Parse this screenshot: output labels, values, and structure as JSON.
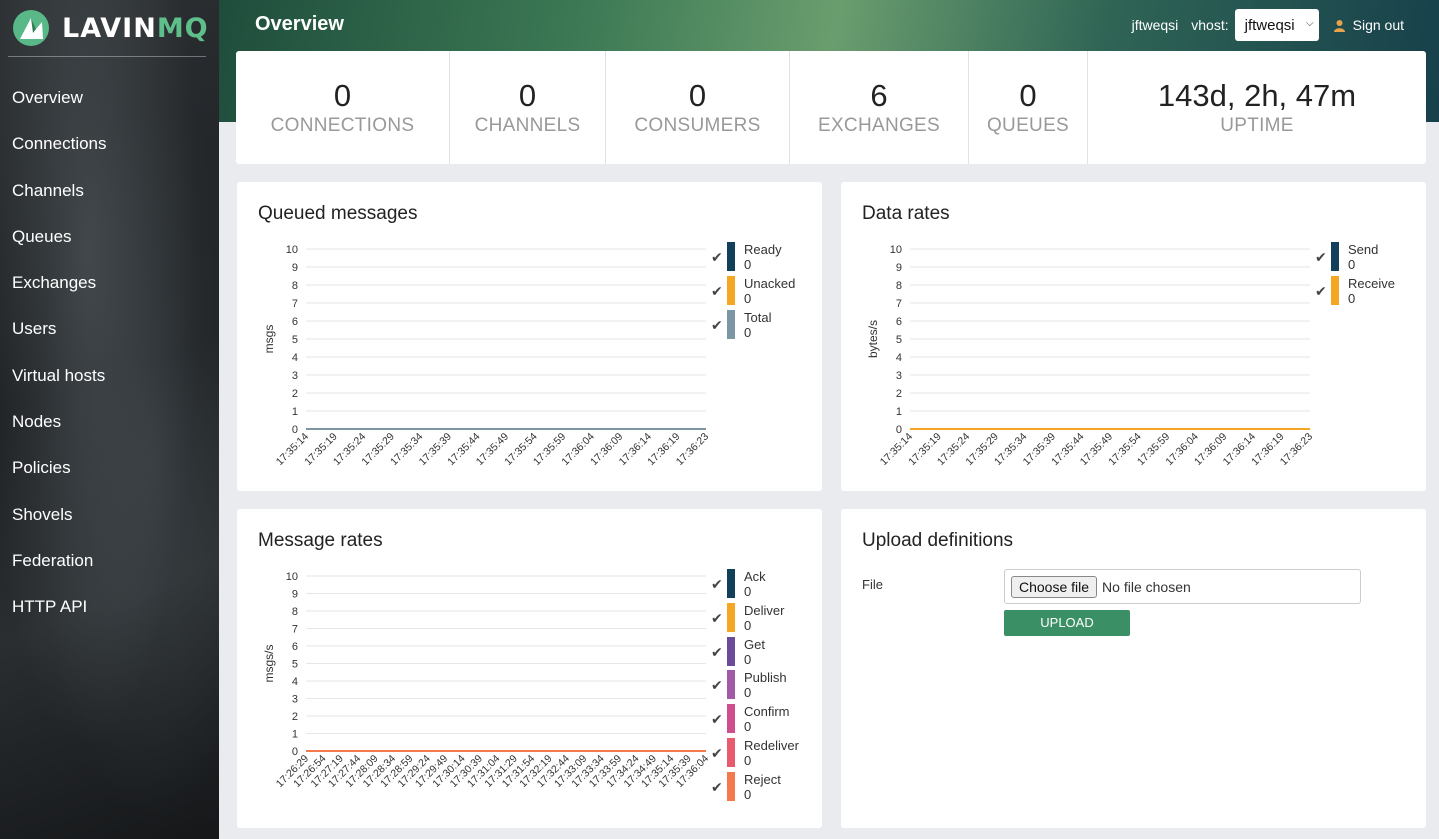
{
  "logo": {
    "word_main": "LAVIN",
    "word_accent": "MQ"
  },
  "nav": [
    "Overview",
    "Connections",
    "Channels",
    "Queues",
    "Exchanges",
    "Users",
    "Virtual hosts",
    "Nodes",
    "Policies",
    "Shovels",
    "Federation",
    "HTTP API"
  ],
  "header": {
    "title": "Overview",
    "user": "jftweqsi",
    "vhost_label": "vhost:",
    "vhost_value": "jftweqsi",
    "signout": "Sign out"
  },
  "stats": [
    {
      "value": "0",
      "label": "CONNECTIONS"
    },
    {
      "value": "0",
      "label": "CHANNELS"
    },
    {
      "value": "0",
      "label": "CONSUMERS"
    },
    {
      "value": "6",
      "label": "EXCHANGES"
    },
    {
      "value": "0",
      "label": "QUEUES"
    },
    {
      "value": "143d, 2h, 47m",
      "label": "UPTIME"
    }
  ],
  "upload": {
    "title": "Upload definitions",
    "file_label": "File",
    "choose_button": "Choose file",
    "file_status": "No file chosen",
    "upload_button": "UPLOAD"
  },
  "colors": {
    "ready": "#12405a",
    "unacked": "#f5a623",
    "total": "#7c97a3",
    "send": "#12405a",
    "receive": "#f5a623",
    "ack": "#12405a",
    "deliver": "#f5a623",
    "get": "#6b4c9a",
    "publish": "#a25aa6",
    "confirm": "#cf4f8c",
    "redeliver": "#e85b6f",
    "reject": "#f47a4d"
  },
  "chart_data": [
    {
      "type": "line",
      "title": "Queued messages",
      "ylabel": "msgs",
      "ylim": [
        0,
        10
      ],
      "yticks": [
        "0",
        "1",
        "2",
        "3",
        "4",
        "5",
        "6",
        "7",
        "8",
        "9",
        "10"
      ],
      "x": [
        "17:35:14",
        "17:35:19",
        "17:35:24",
        "17:35:29",
        "17:35:34",
        "17:35:39",
        "17:35:44",
        "17:35:49",
        "17:35:54",
        "17:35:59",
        "17:36:04",
        "17:36:09",
        "17:36:14",
        "17:36:19",
        "17:36:23"
      ],
      "series": [
        {
          "name": "Ready",
          "display": "0",
          "color_key": "ready",
          "values": [
            0,
            0,
            0,
            0,
            0,
            0,
            0,
            0,
            0,
            0,
            0,
            0,
            0,
            0,
            0
          ]
        },
        {
          "name": "Unacked",
          "display": "0",
          "color_key": "unacked",
          "values": [
            0,
            0,
            0,
            0,
            0,
            0,
            0,
            0,
            0,
            0,
            0,
            0,
            0,
            0,
            0
          ]
        },
        {
          "name": "Total",
          "display": "0",
          "color_key": "total",
          "values": [
            0,
            0,
            0,
            0,
            0,
            0,
            0,
            0,
            0,
            0,
            0,
            0,
            0,
            0,
            0
          ]
        }
      ],
      "legend": "right"
    },
    {
      "type": "line",
      "title": "Data rates",
      "ylabel": "bytes/s",
      "ylim": [
        0,
        10
      ],
      "yticks": [
        "0",
        "1",
        "2",
        "3",
        "4",
        "5",
        "6",
        "7",
        "8",
        "9",
        "10"
      ],
      "x": [
        "17:35:14",
        "17:35:19",
        "17:35:24",
        "17:35:29",
        "17:35:34",
        "17:35:39",
        "17:35:44",
        "17:35:49",
        "17:35:54",
        "17:35:59",
        "17:36:04",
        "17:36:09",
        "17:36:14",
        "17:36:19",
        "17:36:23"
      ],
      "series": [
        {
          "name": "Send",
          "display": "0",
          "color_key": "send",
          "values": [
            0,
            0,
            0,
            0,
            0,
            0,
            0,
            0,
            0,
            0,
            0,
            0,
            0,
            0,
            0
          ]
        },
        {
          "name": "Receive",
          "display": "0",
          "color_key": "receive",
          "values": [
            0,
            0,
            0,
            0,
            0,
            0,
            0,
            0,
            0,
            0,
            0,
            0,
            0,
            0,
            0
          ]
        }
      ],
      "legend": "right"
    },
    {
      "type": "line",
      "title": "Message rates",
      "ylabel": "msgs/s",
      "ylim": [
        0,
        10
      ],
      "yticks": [
        "0",
        "1",
        "2",
        "3",
        "4",
        "5",
        "6",
        "7",
        "8",
        "9",
        "10"
      ],
      "x": [
        "17:26:29",
        "17:26:54",
        "17:27:19",
        "17:27:44",
        "17:28:09",
        "17:28:34",
        "17:28:59",
        "17:29:24",
        "17:29:49",
        "17:30:14",
        "17:30:39",
        "17:31:04",
        "17:31:29",
        "17:31:54",
        "17:32:19",
        "17:32:44",
        "17:33:09",
        "17:33:34",
        "17:33:59",
        "17:34:24",
        "17:34:49",
        "17:35:14",
        "17:35:39",
        "17:36:04"
      ],
      "series": [
        {
          "name": "Ack",
          "display": "0",
          "color_key": "ack",
          "values": [
            0,
            0,
            0,
            0,
            0,
            0,
            0,
            0,
            0,
            0,
            0,
            0,
            0,
            0,
            0,
            0,
            0,
            0,
            0,
            0,
            0,
            0,
            0,
            0
          ]
        },
        {
          "name": "Deliver",
          "display": "0",
          "color_key": "deliver",
          "values": [
            0,
            0,
            0,
            0,
            0,
            0,
            0,
            0,
            0,
            0,
            0,
            0,
            0,
            0,
            0,
            0,
            0,
            0,
            0,
            0,
            0,
            0,
            0,
            0
          ]
        },
        {
          "name": "Get",
          "display": "0",
          "color_key": "get",
          "values": [
            0,
            0,
            0,
            0,
            0,
            0,
            0,
            0,
            0,
            0,
            0,
            0,
            0,
            0,
            0,
            0,
            0,
            0,
            0,
            0,
            0,
            0,
            0,
            0
          ]
        },
        {
          "name": "Publish",
          "display": "0",
          "color_key": "publish",
          "values": [
            0,
            0,
            0,
            0,
            0,
            0,
            0,
            0,
            0,
            0,
            0,
            0,
            0,
            0,
            0,
            0,
            0,
            0,
            0,
            0,
            0,
            0,
            0,
            0
          ]
        },
        {
          "name": "Confirm",
          "display": "0",
          "color_key": "confirm",
          "values": [
            0,
            0,
            0,
            0,
            0,
            0,
            0,
            0,
            0,
            0,
            0,
            0,
            0,
            0,
            0,
            0,
            0,
            0,
            0,
            0,
            0,
            0,
            0,
            0
          ]
        },
        {
          "name": "Redeliver",
          "display": "0",
          "color_key": "redeliver",
          "values": [
            0,
            0,
            0,
            0,
            0,
            0,
            0,
            0,
            0,
            0,
            0,
            0,
            0,
            0,
            0,
            0,
            0,
            0,
            0,
            0,
            0,
            0,
            0,
            0
          ]
        },
        {
          "name": "Reject",
          "display": "0",
          "color_key": "reject",
          "values": [
            0,
            0,
            0,
            0,
            0,
            0,
            0,
            0,
            0,
            0,
            0,
            0,
            0,
            0,
            0,
            0,
            0,
            0,
            0,
            0,
            0,
            0,
            0,
            0
          ]
        }
      ],
      "legend": "right"
    }
  ]
}
